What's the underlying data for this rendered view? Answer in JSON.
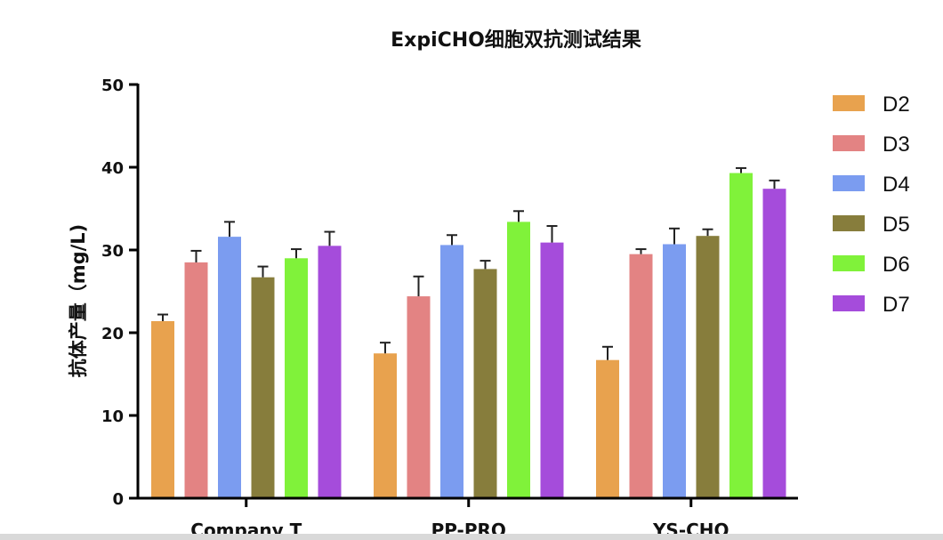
{
  "chart_data": {
    "type": "bar",
    "title": "ExpiCHO细胞双抗测试结果",
    "ylabel": "抗体产量（mg/L)",
    "xlabel": "",
    "ylim": [
      0,
      50
    ],
    "yticks": [
      0,
      10,
      20,
      30,
      40,
      50
    ],
    "categories": [
      "Company T",
      "PP-PRO",
      "YS-CHO"
    ],
    "legend_position": "right",
    "grid": false,
    "error_bars": true,
    "series": [
      {
        "name": "D2",
        "color": "#E8A24E",
        "values": [
          21.4,
          17.5,
          16.7
        ],
        "errors": [
          0.8,
          1.3,
          1.6
        ]
      },
      {
        "name": "D3",
        "color": "#E38383",
        "values": [
          28.5,
          24.4,
          29.5
        ],
        "errors": [
          1.4,
          2.4,
          0.6
        ]
      },
      {
        "name": "D4",
        "color": "#7B9CF0",
        "values": [
          31.6,
          30.6,
          30.7
        ],
        "errors": [
          1.8,
          1.2,
          1.9
        ]
      },
      {
        "name": "D5",
        "color": "#877D3C",
        "values": [
          26.7,
          27.7,
          31.7
        ],
        "errors": [
          1.3,
          1.0,
          0.8
        ]
      },
      {
        "name": "D6",
        "color": "#80F23A",
        "values": [
          29.0,
          33.4,
          39.3
        ],
        "errors": [
          1.1,
          1.3,
          0.6
        ]
      },
      {
        "name": "D7",
        "color": "#A54CDB",
        "values": [
          30.5,
          30.9,
          37.4
        ],
        "errors": [
          1.7,
          2.0,
          1.0
        ]
      }
    ]
  }
}
